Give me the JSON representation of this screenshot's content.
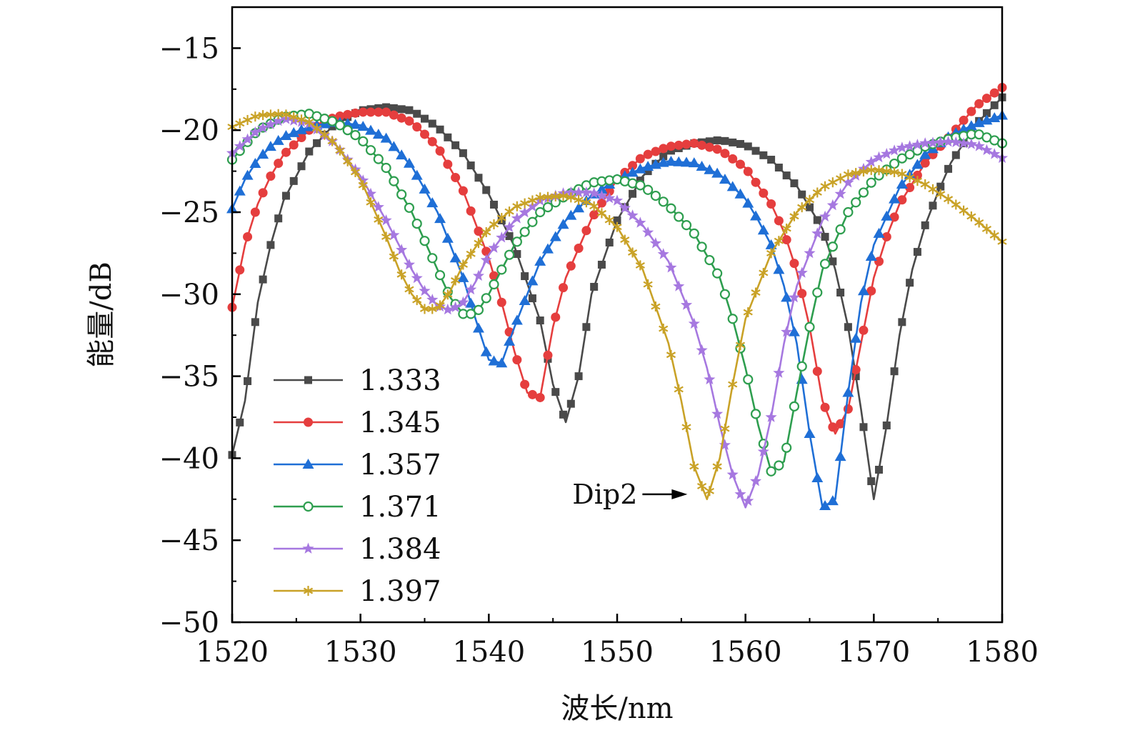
{
  "chart_data": {
    "type": "line",
    "title": "",
    "xlabel": "波长/nm",
    "ylabel": "能量/dB",
    "xlim": [
      1520,
      1580
    ],
    "ylim": [
      -50,
      -12.5
    ],
    "xticks": [
      1520,
      1530,
      1540,
      1550,
      1560,
      1570,
      1580
    ],
    "yticks": [
      -50,
      -45,
      -40,
      -35,
      -30,
      -25,
      -20,
      -15
    ],
    "tick_minus": "−",
    "grid": false,
    "legend_position": "bottom-left",
    "series": [
      {
        "name": "1.333",
        "color": "#4a4a4a",
        "marker": "square",
        "x": [
          1520,
          1521,
          1522,
          1523,
          1524,
          1526,
          1528,
          1530,
          1532,
          1534,
          1536,
          1538,
          1540,
          1542,
          1544,
          1545,
          1546,
          1547,
          1548,
          1550,
          1552,
          1554,
          1556,
          1558,
          1560,
          1562,
          1564,
          1566,
          1567,
          1568,
          1569,
          1570,
          1571,
          1572,
          1573,
          1574,
          1575,
          1576,
          1578,
          1580
        ],
        "y": [
          -39.8,
          -36.5,
          -30.5,
          -27.0,
          -24.3,
          -21.3,
          -19.6,
          -18.8,
          -18.6,
          -18.8,
          -19.8,
          -21.4,
          -23.9,
          -27.1,
          -31.6,
          -35.5,
          -37.8,
          -35.0,
          -30.0,
          -25.5,
          -22.8,
          -21.3,
          -20.8,
          -20.6,
          -20.9,
          -21.8,
          -23.4,
          -26.0,
          -28.5,
          -32.0,
          -37.0,
          -42.5,
          -38.0,
          -32.5,
          -28.5,
          -25.8,
          -23.8,
          -22.0,
          -19.6,
          -18.0
        ]
      },
      {
        "name": "1.345",
        "color": "#e53e3e",
        "marker": "circle",
        "x": [
          1520,
          1521,
          1522,
          1523,
          1524,
          1526,
          1528,
          1530,
          1532,
          1534,
          1536,
          1538,
          1540,
          1541,
          1542,
          1543,
          1544,
          1545,
          1546,
          1548,
          1550,
          1552,
          1554,
          1556,
          1558,
          1560,
          1562,
          1563,
          1564,
          1565,
          1566,
          1567,
          1568,
          1569,
          1570,
          1571,
          1572,
          1574,
          1576,
          1578,
          1580
        ],
        "y": [
          -30.8,
          -27.0,
          -24.5,
          -22.8,
          -21.5,
          -20.0,
          -19.2,
          -18.9,
          -18.9,
          -19.5,
          -21.0,
          -23.7,
          -27.8,
          -30.5,
          -33.5,
          -36.0,
          -36.3,
          -32.0,
          -29.0,
          -25.4,
          -23.0,
          -21.6,
          -21.0,
          -20.8,
          -21.2,
          -22.3,
          -24.5,
          -26.2,
          -28.6,
          -32.0,
          -36.5,
          -38.5,
          -37.0,
          -33.0,
          -29.0,
          -26.5,
          -24.5,
          -22.0,
          -20.3,
          -18.5,
          -17.4
        ]
      },
      {
        "name": "1.357",
        "color": "#1f6fd6",
        "marker": "triangle",
        "x": [
          1520,
          1521,
          1522,
          1523,
          1524,
          1526,
          1528,
          1530,
          1532,
          1534,
          1536,
          1538,
          1539,
          1540,
          1541,
          1542,
          1544,
          1546,
          1548,
          1550,
          1552,
          1554,
          1556,
          1558,
          1560,
          1561,
          1562,
          1563,
          1564,
          1565,
          1566,
          1567,
          1568,
          1569,
          1570,
          1572,
          1574,
          1576,
          1578,
          1580
        ],
        "y": [
          -24.8,
          -23.0,
          -21.8,
          -21.0,
          -20.4,
          -19.8,
          -19.5,
          -19.7,
          -20.5,
          -22.2,
          -25.0,
          -29.0,
          -31.6,
          -34.0,
          -34.2,
          -32.0,
          -28.0,
          -25.5,
          -24.0,
          -23.0,
          -22.3,
          -21.9,
          -22.0,
          -22.7,
          -24.2,
          -25.5,
          -27.0,
          -29.5,
          -33.0,
          -38.5,
          -43.0,
          -42.5,
          -36.0,
          -30.5,
          -27.0,
          -23.5,
          -21.5,
          -20.3,
          -19.6,
          -19.1
        ]
      },
      {
        "name": "1.371",
        "color": "#2e9e4f",
        "marker": "open-circle",
        "x": [
          1520,
          1522,
          1524,
          1526,
          1528,
          1530,
          1532,
          1534,
          1536,
          1537,
          1538,
          1539,
          1540,
          1542,
          1544,
          1546,
          1548,
          1550,
          1552,
          1554,
          1556,
          1558,
          1559,
          1560,
          1561,
          1562,
          1563,
          1564,
          1565,
          1566,
          1568,
          1570,
          1572,
          1574,
          1576,
          1578,
          1580
        ],
        "y": [
          -21.8,
          -20.0,
          -19.2,
          -19.0,
          -19.5,
          -20.5,
          -22.3,
          -25.0,
          -28.5,
          -30.2,
          -31.2,
          -31.2,
          -30.0,
          -27.0,
          -25.0,
          -24.0,
          -23.2,
          -23.0,
          -23.4,
          -24.6,
          -26.3,
          -29.0,
          -31.5,
          -34.5,
          -38.0,
          -40.8,
          -40.2,
          -36.0,
          -32.0,
          -28.5,
          -25.0,
          -23.0,
          -21.8,
          -21.0,
          -20.5,
          -20.2,
          -20.8
        ]
      },
      {
        "name": "1.384",
        "color": "#a678e0",
        "marker": "star",
        "x": [
          1520,
          1522,
          1524,
          1526,
          1528,
          1530,
          1532,
          1534,
          1535,
          1536,
          1537,
          1538,
          1539,
          1540,
          1542,
          1544,
          1546,
          1548,
          1550,
          1552,
          1554,
          1556,
          1557,
          1558,
          1559,
          1560,
          1561,
          1562,
          1563,
          1564,
          1566,
          1568,
          1570,
          1572,
          1574,
          1576,
          1578,
          1580
        ],
        "y": [
          -21.4,
          -20.0,
          -19.3,
          -19.6,
          -20.8,
          -22.8,
          -25.5,
          -28.5,
          -29.8,
          -30.7,
          -31.0,
          -30.5,
          -29.2,
          -27.6,
          -25.5,
          -24.3,
          -23.8,
          -23.8,
          -24.3,
          -25.8,
          -28.0,
          -31.8,
          -34.5,
          -38.0,
          -41.0,
          -43.0,
          -41.0,
          -37.5,
          -33.0,
          -29.5,
          -25.5,
          -23.2,
          -21.8,
          -21.1,
          -20.8,
          -20.7,
          -20.9,
          -21.7
        ]
      },
      {
        "name": "1.397",
        "color": "#c9a227",
        "marker": "asterisk",
        "x": [
          1520,
          1522,
          1524,
          1526,
          1528,
          1530,
          1532,
          1533,
          1534,
          1535,
          1536,
          1537,
          1538,
          1540,
          1542,
          1544,
          1546,
          1548,
          1550,
          1552,
          1554,
          1555,
          1556,
          1557,
          1558,
          1559,
          1560,
          1562,
          1564,
          1566,
          1568,
          1570,
          1572,
          1574,
          1576,
          1578,
          1580
        ],
        "y": [
          -19.8,
          -19.1,
          -19.0,
          -19.5,
          -20.8,
          -23.0,
          -26.5,
          -28.5,
          -30.0,
          -30.9,
          -30.9,
          -29.8,
          -28.2,
          -26.0,
          -24.7,
          -24.1,
          -24.0,
          -24.5,
          -25.9,
          -28.5,
          -33.0,
          -36.5,
          -40.5,
          -42.5,
          -40.0,
          -35.5,
          -31.5,
          -27.5,
          -25.0,
          -23.5,
          -22.7,
          -22.4,
          -22.6,
          -23.3,
          -24.3,
          -25.5,
          -26.8
        ]
      }
    ],
    "annotation": {
      "text": "Dip2",
      "x": 1556.7,
      "y": -42.2
    }
  }
}
